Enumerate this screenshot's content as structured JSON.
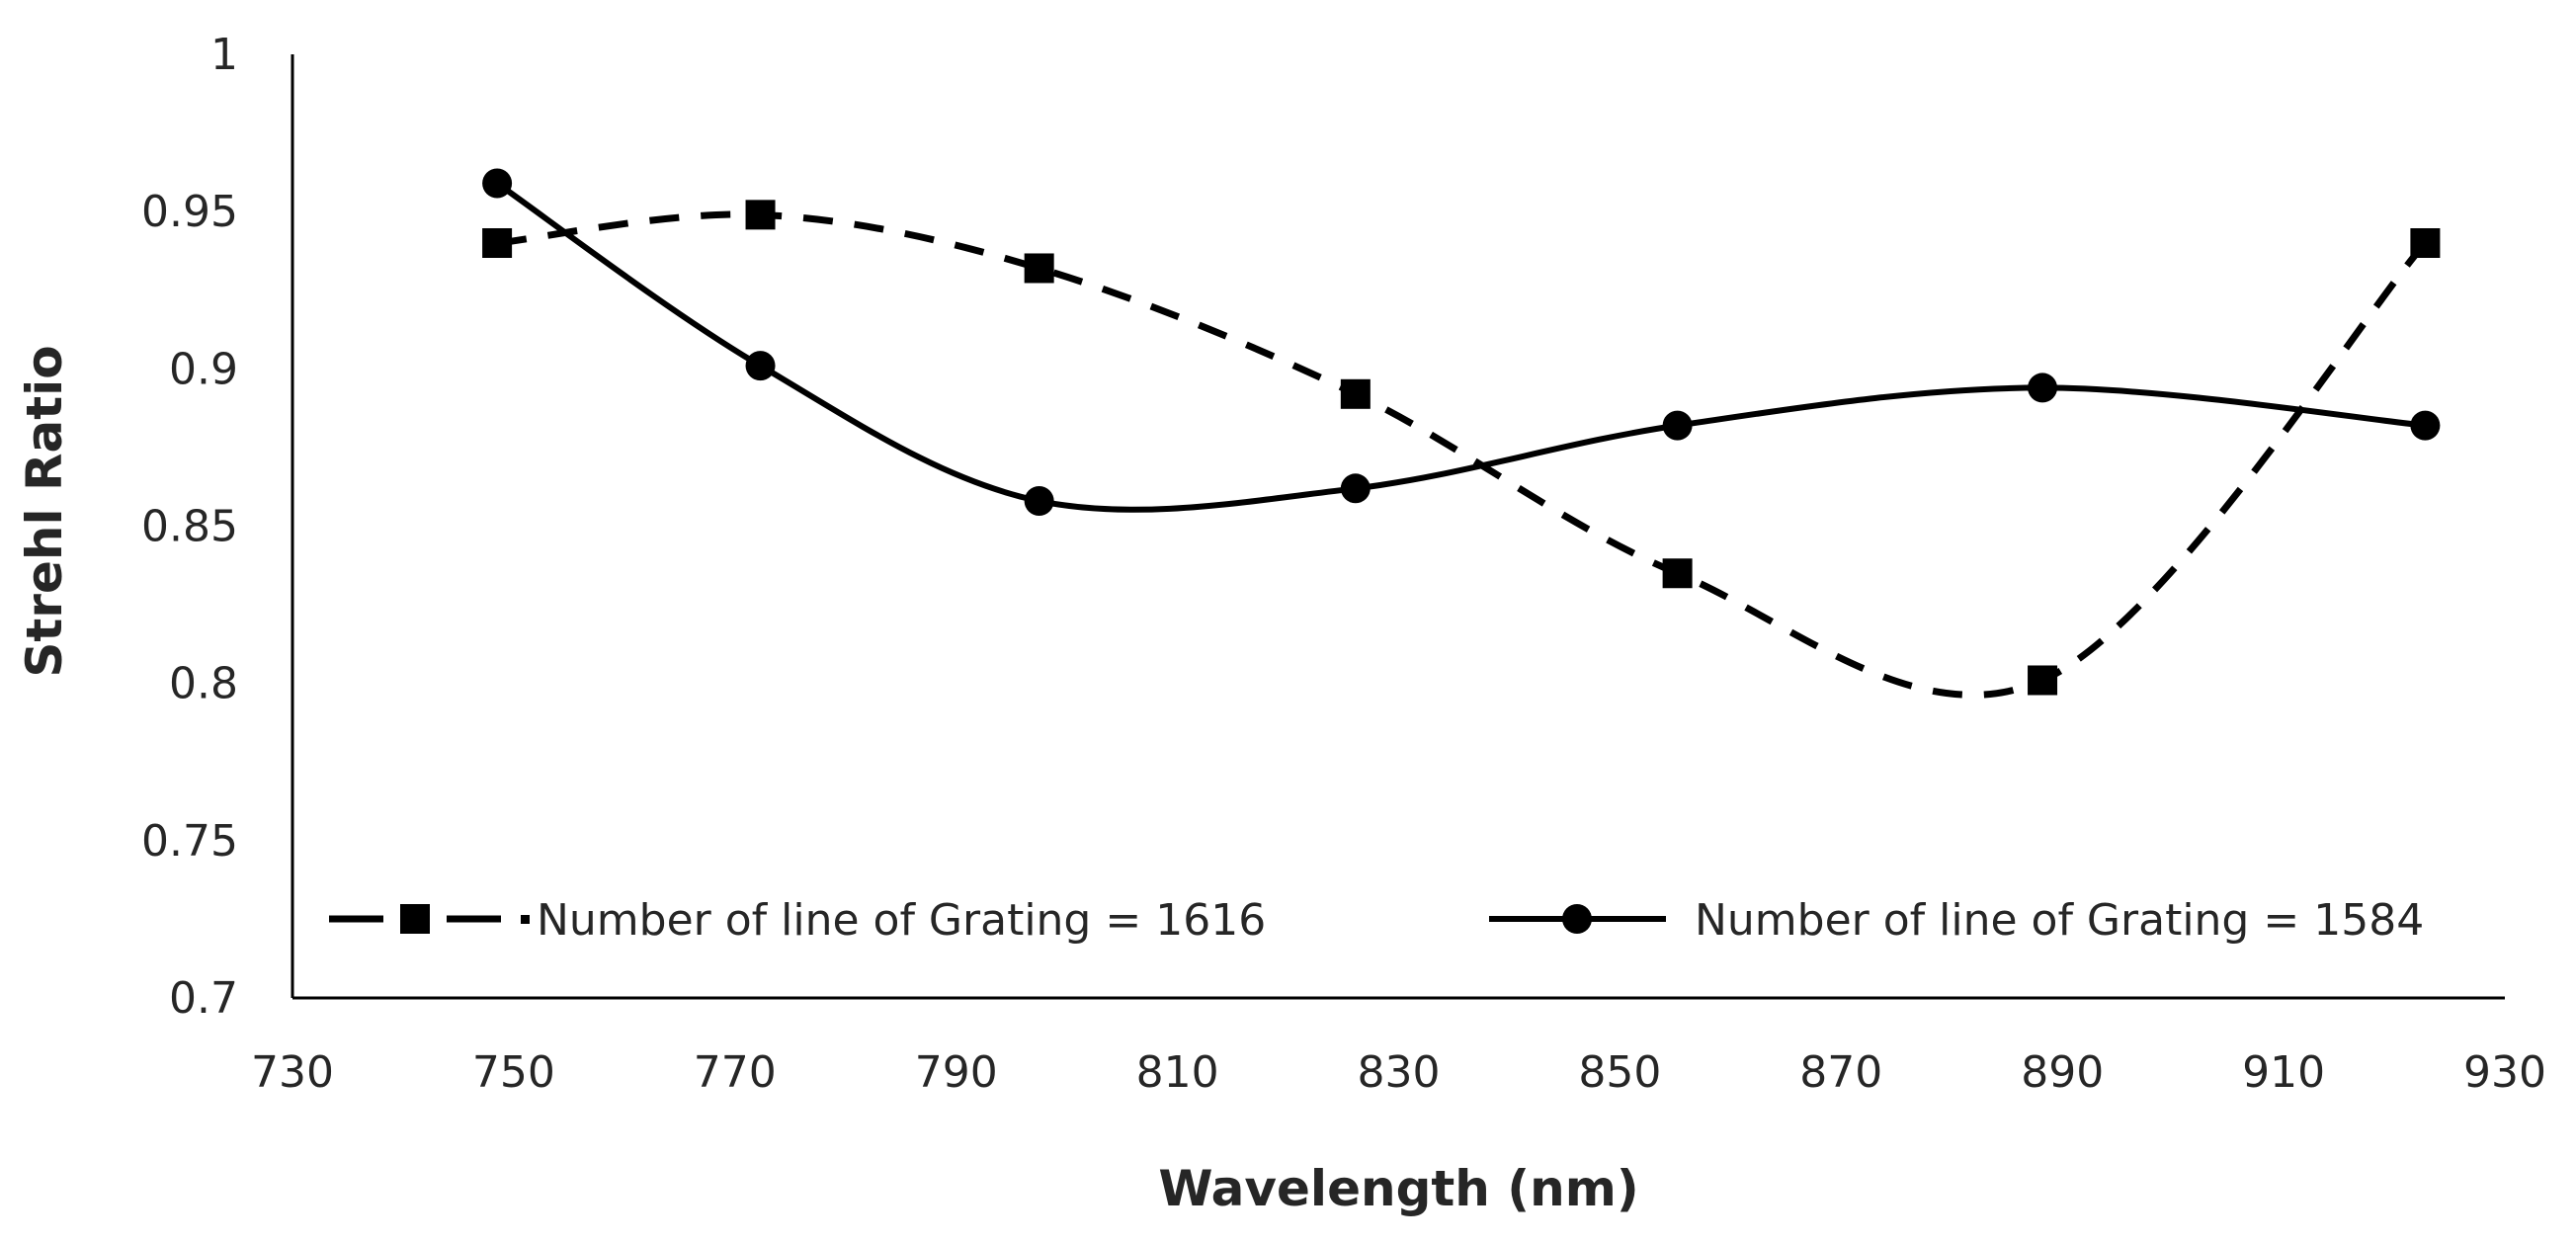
{
  "chart_data": {
    "type": "line",
    "title": "",
    "xlabel": "Wavelength (nm)",
    "ylabel": "Strehl Ratio",
    "xlim": [
      730,
      930
    ],
    "ylim": [
      0.7,
      1.0
    ],
    "x_ticks": [
      "730",
      "750",
      "770",
      "790",
      "810",
      "830",
      "850",
      "870",
      "890",
      "910",
      "930"
    ],
    "y_ticks": [
      "0.7",
      "0.75",
      "0.8",
      "0.85",
      "0.9",
      "0.95",
      "1"
    ],
    "grid": false,
    "smooth": true,
    "legend": {
      "placement": "bottom",
      "entries": [
        "Number of line of Grating = 1616",
        "Number of line of Grating = 1584"
      ]
    },
    "series": [
      {
        "name": "Number of line of Grating = 1616",
        "line_style": "dashed",
        "marker": "square",
        "color": "#000000",
        "x": [
          748.5,
          772.3,
          797.5,
          826.1,
          855.2,
          888.2,
          922.8
        ],
        "y": [
          0.94,
          0.949,
          0.932,
          0.892,
          0.835,
          0.801,
          0.94
        ]
      },
      {
        "name": "Number of line of Grating = 1584",
        "line_style": "solid",
        "marker": "circle",
        "color": "#000000",
        "x": [
          748.5,
          772.3,
          797.5,
          826.1,
          855.2,
          888.2,
          922.8
        ],
        "y": [
          0.959,
          0.901,
          0.858,
          0.862,
          0.882,
          0.894,
          0.882
        ]
      }
    ]
  }
}
